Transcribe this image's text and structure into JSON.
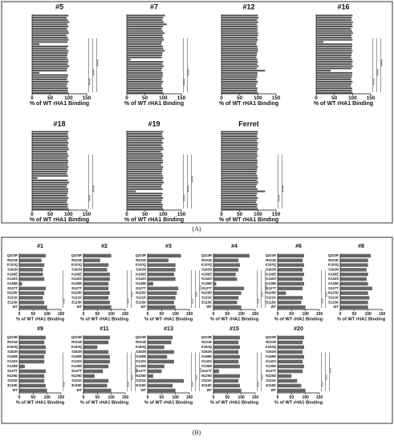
{
  "panel_labels": [
    "(A)",
    "(B)"
  ],
  "chart_data": [
    {
      "type": "hbar",
      "panel": 0,
      "title": "#5",
      "xlabel": "% of WT rHA1 Binding",
      "color": "#555555",
      "xlim": [
        0,
        150
      ],
      "xticks": [
        0,
        50,
        100,
        150
      ],
      "annotations": [
        "****",
        "****",
        "****"
      ],
      "categories": [
        null,
        null,
        null,
        null,
        null,
        null,
        null,
        null,
        null,
        null,
        null,
        null,
        null,
        null,
        null,
        null,
        null,
        null,
        null,
        null,
        null,
        null,
        null,
        null,
        null,
        null,
        null,
        null,
        null,
        null,
        null,
        null,
        null,
        null,
        null,
        null
      ],
      "values": [
        100,
        95,
        98,
        102,
        97,
        100,
        96,
        99,
        101,
        94,
        98,
        100,
        97,
        20,
        99,
        95,
        100,
        98,
        97,
        96,
        99,
        100,
        98,
        102,
        97,
        95,
        20,
        99,
        98,
        96,
        100,
        97,
        95,
        99,
        98,
        100
      ]
    },
    {
      "type": "hbar",
      "panel": 0,
      "title": "#7",
      "xlabel": "% of WT rHA1 Binding",
      "color": "#555555",
      "xlim": [
        0,
        150
      ],
      "xticks": [
        0,
        50,
        100,
        150
      ],
      "annotations": [
        "****",
        "****"
      ],
      "categories": [
        null,
        null,
        null,
        null,
        null,
        null,
        null,
        null,
        null,
        null,
        null,
        null,
        null,
        null,
        null,
        null,
        null,
        null,
        null,
        null,
        null,
        null,
        null,
        null,
        null,
        null,
        null,
        null,
        null,
        null,
        null,
        null,
        null,
        null,
        null,
        null
      ],
      "values": [
        105,
        100,
        98,
        102,
        110,
        100,
        96,
        99,
        104,
        98,
        100,
        102,
        97,
        95,
        99,
        100,
        104,
        98,
        97,
        96,
        10,
        100,
        98,
        102,
        97,
        95,
        99,
        99,
        98,
        96,
        100,
        97,
        95,
        99,
        98,
        100
      ]
    },
    {
      "type": "hbar",
      "panel": 0,
      "title": "#12",
      "xlabel": "% of WT rHA1 Binding",
      "color": "#555555",
      "xlim": [
        0,
        150
      ],
      "xticks": [
        0,
        50,
        100,
        150
      ],
      "annotations": [],
      "categories": [
        null,
        null,
        null,
        null,
        null,
        null,
        null,
        null,
        null,
        null,
        null,
        null,
        null,
        null,
        null,
        null,
        null,
        null,
        null,
        null,
        null,
        null,
        null,
        null,
        null,
        null,
        null,
        null,
        null,
        null,
        null,
        null,
        null,
        null,
        null,
        null
      ],
      "values": [
        100,
        102,
        98,
        101,
        97,
        100,
        99,
        99,
        101,
        100,
        98,
        100,
        97,
        96,
        99,
        100,
        101,
        98,
        97,
        96,
        99,
        100,
        98,
        102,
        97,
        120,
        99,
        99,
        98,
        96,
        100,
        97,
        95,
        99,
        98,
        100
      ]
    },
    {
      "type": "hbar",
      "panel": 0,
      "title": "#16",
      "xlabel": "% of WT rHA1 Binding",
      "color": "#555555",
      "xlim": [
        0,
        150
      ],
      "xticks": [
        0,
        50,
        100,
        150
      ],
      "annotations": [
        "****",
        "****",
        "****"
      ],
      "categories": [
        null,
        null,
        null,
        null,
        null,
        null,
        null,
        null,
        null,
        null,
        null,
        null,
        null,
        null,
        null,
        null,
        null,
        null,
        null,
        null,
        null,
        null,
        null,
        null,
        null,
        null,
        null,
        null,
        null,
        null,
        null,
        null,
        null,
        null,
        null,
        null
      ],
      "values": [
        100,
        98,
        97,
        101,
        99,
        100,
        96,
        99,
        101,
        97,
        98,
        100,
        20,
        99,
        99,
        98,
        100,
        98,
        97,
        96,
        99,
        100,
        98,
        101,
        97,
        40,
        99,
        99,
        98,
        96,
        100,
        97,
        95,
        99,
        98,
        100
      ]
    },
    {
      "type": "hbar",
      "panel": 0,
      "title": "#18",
      "xlabel": "% of WT rHA1 Binding",
      "color": "#555555",
      "xlim": [
        0,
        150
      ],
      "xticks": [
        0,
        50,
        100,
        150
      ],
      "annotations": [
        "****",
        "****"
      ],
      "categories": [
        null,
        null,
        null,
        null,
        null,
        null,
        null,
        null,
        null,
        null,
        null,
        null,
        null,
        null,
        null,
        null,
        null,
        null,
        null,
        null,
        null,
        null,
        null,
        null,
        null,
        null,
        null,
        null,
        null,
        null,
        null,
        null,
        null,
        null,
        null,
        null
      ],
      "values": [
        100,
        98,
        99,
        101,
        97,
        100,
        98,
        99,
        101,
        96,
        98,
        100,
        97,
        99,
        99,
        98,
        100,
        98,
        97,
        96,
        99,
        15,
        98,
        102,
        97,
        95,
        99,
        99,
        98,
        96,
        100,
        97,
        95,
        99,
        98,
        100
      ]
    },
    {
      "type": "hbar",
      "panel": 0,
      "title": "#19",
      "xlabel": "% of WT rHA1 Binding",
      "color": "#555555",
      "xlim": [
        0,
        150
      ],
      "xticks": [
        0,
        50,
        100,
        150
      ],
      "annotations": [
        "****",
        "****",
        "****"
      ],
      "categories": [
        null,
        null,
        null,
        null,
        null,
        null,
        null,
        null,
        null,
        null,
        null,
        null,
        null,
        null,
        null,
        null,
        null,
        null,
        null,
        null,
        null,
        null,
        null,
        null,
        null,
        null,
        null,
        null,
        null,
        null,
        null,
        null,
        null,
        null,
        null,
        null
      ],
      "values": [
        100,
        97,
        98,
        102,
        97,
        100,
        96,
        99,
        101,
        94,
        98,
        100,
        97,
        99,
        99,
        95,
        100,
        98,
        97,
        96,
        99,
        100,
        98,
        102,
        97,
        95,
        99,
        25,
        98,
        96,
        100,
        97,
        95,
        99,
        98,
        100
      ]
    },
    {
      "type": "hbar",
      "panel": 0,
      "title": "Ferret",
      "xlabel": "% of WT rHA1 Binding",
      "color": "#555555",
      "xlim": [
        0,
        150
      ],
      "xticks": [
        0,
        50,
        100,
        150
      ],
      "annotations": [
        "****",
        "****"
      ],
      "categories": [
        null,
        null,
        null,
        null,
        null,
        null,
        null,
        null,
        null,
        null,
        null,
        null,
        null,
        null,
        null,
        null,
        null,
        null,
        null,
        null,
        null,
        null,
        null,
        null,
        null,
        null,
        null,
        null,
        null,
        null,
        null,
        null,
        null,
        null,
        null,
        null
      ],
      "values": [
        100,
        99,
        98,
        101,
        97,
        100,
        99,
        99,
        101,
        98,
        98,
        100,
        97,
        99,
        99,
        98,
        100,
        98,
        97,
        96,
        99,
        100,
        98,
        101,
        97,
        95,
        99,
        120,
        98,
        96,
        100,
        97,
        95,
        99,
        98,
        100
      ]
    },
    {
      "type": "hbar",
      "panel": 1,
      "title": "#1",
      "xlabel": "% of WT rHA1 Binding",
      "color": "#666666",
      "xlim": [
        0,
        150
      ],
      "xticks": [
        0,
        50,
        100,
        150
      ],
      "annotations": [
        "****"
      ],
      "categories": [
        "Q223R",
        "R221E",
        "K163Q",
        "S162N",
        "K160E",
        "K142S",
        "K130E",
        "D127T",
        "N125D",
        "S121K",
        "E115K",
        "WT"
      ],
      "values": [
        95,
        80,
        90,
        85,
        85,
        90,
        10,
        95,
        90,
        85,
        90,
        100
      ]
    },
    {
      "type": "hbar",
      "panel": 1,
      "title": "#2",
      "xlabel": "% of WT rHA1 Binding",
      "color": "#666666",
      "xlim": [
        0,
        150
      ],
      "xticks": [
        0,
        50,
        100,
        150
      ],
      "annotations": [
        "****",
        "****"
      ],
      "categories": [
        "Q223R",
        "R221E",
        "K163Q",
        "S162N",
        "K160E",
        "K142S",
        "K130E",
        "D127T",
        "N125D",
        "S121K",
        "E115K",
        "WT"
      ],
      "values": [
        100,
        60,
        90,
        85,
        95,
        95,
        90,
        90,
        95,
        90,
        95,
        100
      ]
    },
    {
      "type": "hbar",
      "panel": 1,
      "title": "#3",
      "xlabel": "% of WT rHA1 Binding",
      "color": "#666666",
      "xlim": [
        0,
        150
      ],
      "xticks": [
        0,
        50,
        100,
        150
      ],
      "annotations": [
        "****",
        "****",
        "****"
      ],
      "categories": [
        "Q223R",
        "R221E",
        "K163Q",
        "S162N",
        "K160E",
        "K142S",
        "K130E",
        "D127T",
        "N125D",
        "S121K",
        "E115K",
        "WT"
      ],
      "values": [
        120,
        75,
        100,
        100,
        95,
        100,
        20,
        110,
        105,
        100,
        95,
        100
      ]
    },
    {
      "type": "hbar",
      "panel": 1,
      "title": "#4",
      "xlabel": "% of WT rHA1 Binding",
      "color": "#666666",
      "xlim": [
        0,
        150
      ],
      "xticks": [
        0,
        50,
        100,
        150
      ],
      "annotations": [
        "****",
        "****",
        "****"
      ],
      "categories": [
        "Q223R",
        "R221E",
        "K163Q",
        "S162N",
        "K160E",
        "K142S",
        "K130E",
        "D127T",
        "N125D",
        "S121K",
        "E115K",
        "WT"
      ],
      "values": [
        130,
        90,
        95,
        90,
        80,
        85,
        10,
        110,
        100,
        90,
        85,
        100
      ]
    },
    {
      "type": "hbar",
      "panel": 1,
      "title": "#6",
      "xlabel": "% of WT rHA1 Binding",
      "color": "#666666",
      "xlim": [
        0,
        150
      ],
      "xticks": [
        0,
        50,
        100,
        150
      ],
      "annotations": [
        "****",
        "****"
      ],
      "categories": [
        "Q223R",
        "R221E",
        "K163Q",
        "S162N",
        "K160E",
        "K142S",
        "K130E",
        "D127T",
        "N125D",
        "S121K",
        "E115K",
        "WT"
      ],
      "values": [
        95,
        90,
        95,
        90,
        95,
        90,
        95,
        90,
        30,
        90,
        85,
        100
      ]
    },
    {
      "type": "hbar",
      "panel": 1,
      "title": "#8",
      "xlabel": "% of WT rHA1 Binding",
      "color": "#666666",
      "xlim": [
        0,
        150
      ],
      "xticks": [
        0,
        50,
        100,
        150
      ],
      "annotations": [],
      "categories": [
        "Q223R",
        "R221E",
        "K163Q",
        "S162N",
        "K160E",
        "K142S",
        "K130E",
        "D127T",
        "N125D",
        "S121K",
        "E115K",
        "WT"
      ],
      "values": [
        110,
        100,
        100,
        95,
        100,
        95,
        100,
        115,
        100,
        105,
        100,
        100
      ]
    },
    {
      "type": "hbar",
      "panel": 1,
      "title": "#9",
      "xlabel": "% of WT rHA1 Binding",
      "color": "#666666",
      "xlim": [
        0,
        150
      ],
      "xticks": [
        0,
        50,
        100,
        150
      ],
      "annotations": [
        "****"
      ],
      "categories": [
        "Q223R",
        "R221E",
        "K163Q",
        "S162N",
        "K160E",
        "K142S",
        "K130E",
        "D127T",
        "N125D",
        "S121K",
        "E115K",
        "WT"
      ],
      "values": [
        95,
        90,
        95,
        95,
        90,
        90,
        20,
        95,
        90,
        90,
        95,
        100
      ]
    },
    {
      "type": "hbar",
      "panel": 1,
      "title": "#11",
      "xlabel": "% of WT rHA1 Binding",
      "color": "#666666",
      "xlim": [
        0,
        150
      ],
      "xticks": [
        0,
        50,
        100,
        150
      ],
      "annotations": [
        "****",
        "****",
        "****"
      ],
      "categories": [
        "Q223R",
        "R221E",
        "K163Q",
        "S162N",
        "K160E",
        "K142S",
        "K130E",
        "D127T",
        "N125D",
        "S121K",
        "E115K",
        "WT"
      ],
      "values": [
        95,
        90,
        50,
        90,
        95,
        95,
        90,
        70,
        40,
        90,
        85,
        100
      ]
    },
    {
      "type": "hbar",
      "panel": 1,
      "title": "#13",
      "xlabel": "% of WT rHA1 Binding",
      "color": "#666666",
      "xlim": [
        0,
        150
      ],
      "xticks": [
        0,
        50,
        100,
        150
      ],
      "annotations": [
        "****",
        "****",
        "****"
      ],
      "categories": [
        "Q223R",
        "R221E",
        "K163Q",
        "S162N",
        "K160E",
        "K142S",
        "K130E",
        "D127T",
        "N125D",
        "S121K",
        "E115K",
        "WT"
      ],
      "values": [
        90,
        85,
        60,
        95,
        70,
        95,
        60,
        50,
        20,
        130,
        90,
        100
      ]
    },
    {
      "type": "hbar",
      "panel": 1,
      "title": "#15",
      "xlabel": "% of WT rHA1 Binding",
      "color": "#666666",
      "xlim": [
        0,
        150
      ],
      "xticks": [
        0,
        50,
        100,
        150
      ],
      "annotations": [
        "****",
        "****"
      ],
      "categories": [
        "Q223R",
        "R221E",
        "K163Q",
        "S162N",
        "K160E",
        "K142S",
        "K130E",
        "D127T",
        "N125D",
        "S121K",
        "E115K",
        "WT"
      ],
      "values": [
        95,
        90,
        95,
        90,
        95,
        90,
        95,
        20,
        95,
        90,
        95,
        100
      ]
    },
    {
      "type": "hbar",
      "panel": 1,
      "title": "#20",
      "xlabel": "% of WT rHA1 Binding",
      "color": "#666666",
      "xlim": [
        0,
        150
      ],
      "xticks": [
        0,
        50,
        100,
        150
      ],
      "annotations": [
        "****",
        "****",
        "****"
      ],
      "categories": [
        "Q223R",
        "R221E",
        "K163Q",
        "S162N",
        "K160E",
        "K142S",
        "K130E",
        "D127T",
        "N125D",
        "S121K",
        "E115K",
        "WT"
      ],
      "values": [
        95,
        90,
        95,
        90,
        95,
        90,
        95,
        90,
        50,
        70,
        85,
        100
      ]
    }
  ]
}
